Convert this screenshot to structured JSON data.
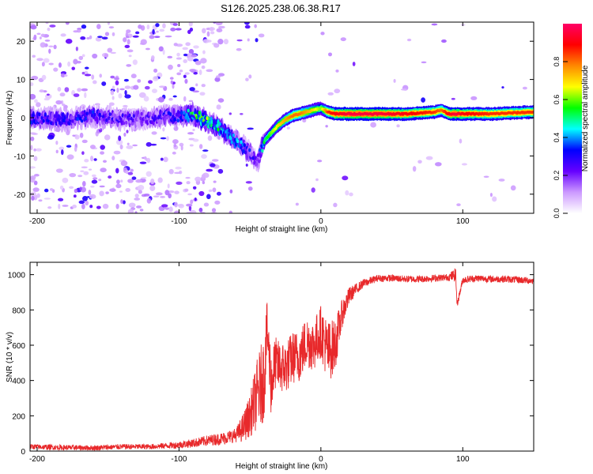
{
  "title": "S126.2025.238.06.38.R17",
  "chart_data": [
    {
      "type": "heatmap",
      "name": "spectrogram",
      "xlabel": "Height of straight line (km)",
      "ylabel": "Frequency (Hz)",
      "xlim": [
        -205,
        150
      ],
      "ylim": [
        -25,
        25
      ],
      "xticks": [
        -200,
        -100,
        0,
        100
      ],
      "xtick_labels": [
        "-200",
        "-100",
        "0",
        "100"
      ],
      "yticks": [
        -20,
        -10,
        0,
        10,
        20
      ],
      "ytick_labels": [
        "-20",
        "-10",
        "0",
        "10",
        "20"
      ],
      "colorbar": {
        "label": "Normalized spectral amplitude",
        "range": [
          0,
          1
        ],
        "ticks": [
          0.0,
          0.2,
          0.4,
          0.6,
          0.8
        ],
        "tick_labels": [
          "0.0",
          "0.2",
          "0.4",
          "0.6",
          "0.8"
        ],
        "colormap": [
          "#ffffff",
          "#cc99ff",
          "#6600ff",
          "#0000ff",
          "#00ffff",
          "#00ff00",
          "#ffff00",
          "#ff8800",
          "#ff0000",
          "#ff0066"
        ]
      },
      "ridge": {
        "height_km": [
          -205,
          -180,
          -160,
          -140,
          -120,
          -100,
          -90,
          -80,
          -70,
          -60,
          -50,
          -45,
          -40,
          -35,
          -30,
          -25,
          -20,
          -15,
          -10,
          -5,
          0,
          5,
          10,
          20,
          40,
          60,
          80,
          85,
          90,
          95,
          100,
          120,
          150
        ],
        "frequency_hz": [
          0,
          -0.5,
          0.5,
          -0.5,
          0,
          0.5,
          1,
          -1,
          -3,
          -6,
          -9,
          -12,
          -6,
          -4,
          -2,
          -0.5,
          0.5,
          1,
          1.5,
          2,
          2.5,
          1.5,
          1,
          1,
          1,
          1,
          1.5,
          2,
          1,
          1,
          1,
          1,
          1.5
        ],
        "amplitude": [
          0.3,
          0.3,
          0.3,
          0.25,
          0.25,
          0.3,
          0.5,
          0.55,
          0.45,
          0.4,
          0.3,
          0.2,
          0.5,
          0.6,
          0.7,
          0.75,
          0.8,
          0.8,
          0.75,
          0.7,
          0.6,
          0.85,
          0.9,
          0.95,
          0.95,
          0.9,
          0.85,
          0.8,
          0.9,
          0.95,
          0.9,
          0.85,
          0.85
        ]
      }
    },
    {
      "type": "line",
      "name": "snr",
      "xlabel": "Height of straight line (km)",
      "ylabel": "SNR (10 * v/v)",
      "xlim": [
        -205,
        150
      ],
      "ylim": [
        0,
        1070
      ],
      "xticks": [
        -200,
        -100,
        0,
        100
      ],
      "xtick_labels": [
        "-200",
        "-100",
        "0",
        "100"
      ],
      "yticks": [
        0,
        200,
        400,
        600,
        800,
        1000
      ],
      "ytick_labels": [
        "0",
        "200",
        "400",
        "600",
        "800",
        "1000"
      ],
      "color": "#e8292b",
      "x": [
        -205,
        -180,
        -160,
        -140,
        -120,
        -100,
        -90,
        -80,
        -70,
        -60,
        -55,
        -50,
        -45,
        -40,
        -38,
        -35,
        -32,
        -30,
        -25,
        -20,
        -15,
        -10,
        -5,
        0,
        5,
        10,
        15,
        20,
        25,
        30,
        40,
        50,
        60,
        70,
        80,
        90,
        95,
        96,
        100,
        110,
        120,
        130,
        140,
        150
      ],
      "y": [
        25,
        20,
        18,
        25,
        25,
        35,
        45,
        60,
        70,
        90,
        130,
        200,
        320,
        420,
        700,
        380,
        500,
        480,
        470,
        530,
        540,
        620,
        600,
        680,
        560,
        600,
        780,
        880,
        920,
        950,
        980,
        980,
        975,
        975,
        980,
        985,
        1000,
        830,
        970,
        980,
        975,
        975,
        970,
        965
      ],
      "noise_amplitude": [
        15,
        15,
        15,
        15,
        15,
        20,
        25,
        30,
        35,
        40,
        80,
        120,
        200,
        250,
        150,
        200,
        150,
        150,
        150,
        150,
        150,
        150,
        150,
        150,
        180,
        150,
        80,
        50,
        30,
        25,
        20,
        20,
        20,
        20,
        20,
        20,
        40,
        20,
        20,
        20,
        20,
        20,
        20,
        20
      ]
    }
  ]
}
